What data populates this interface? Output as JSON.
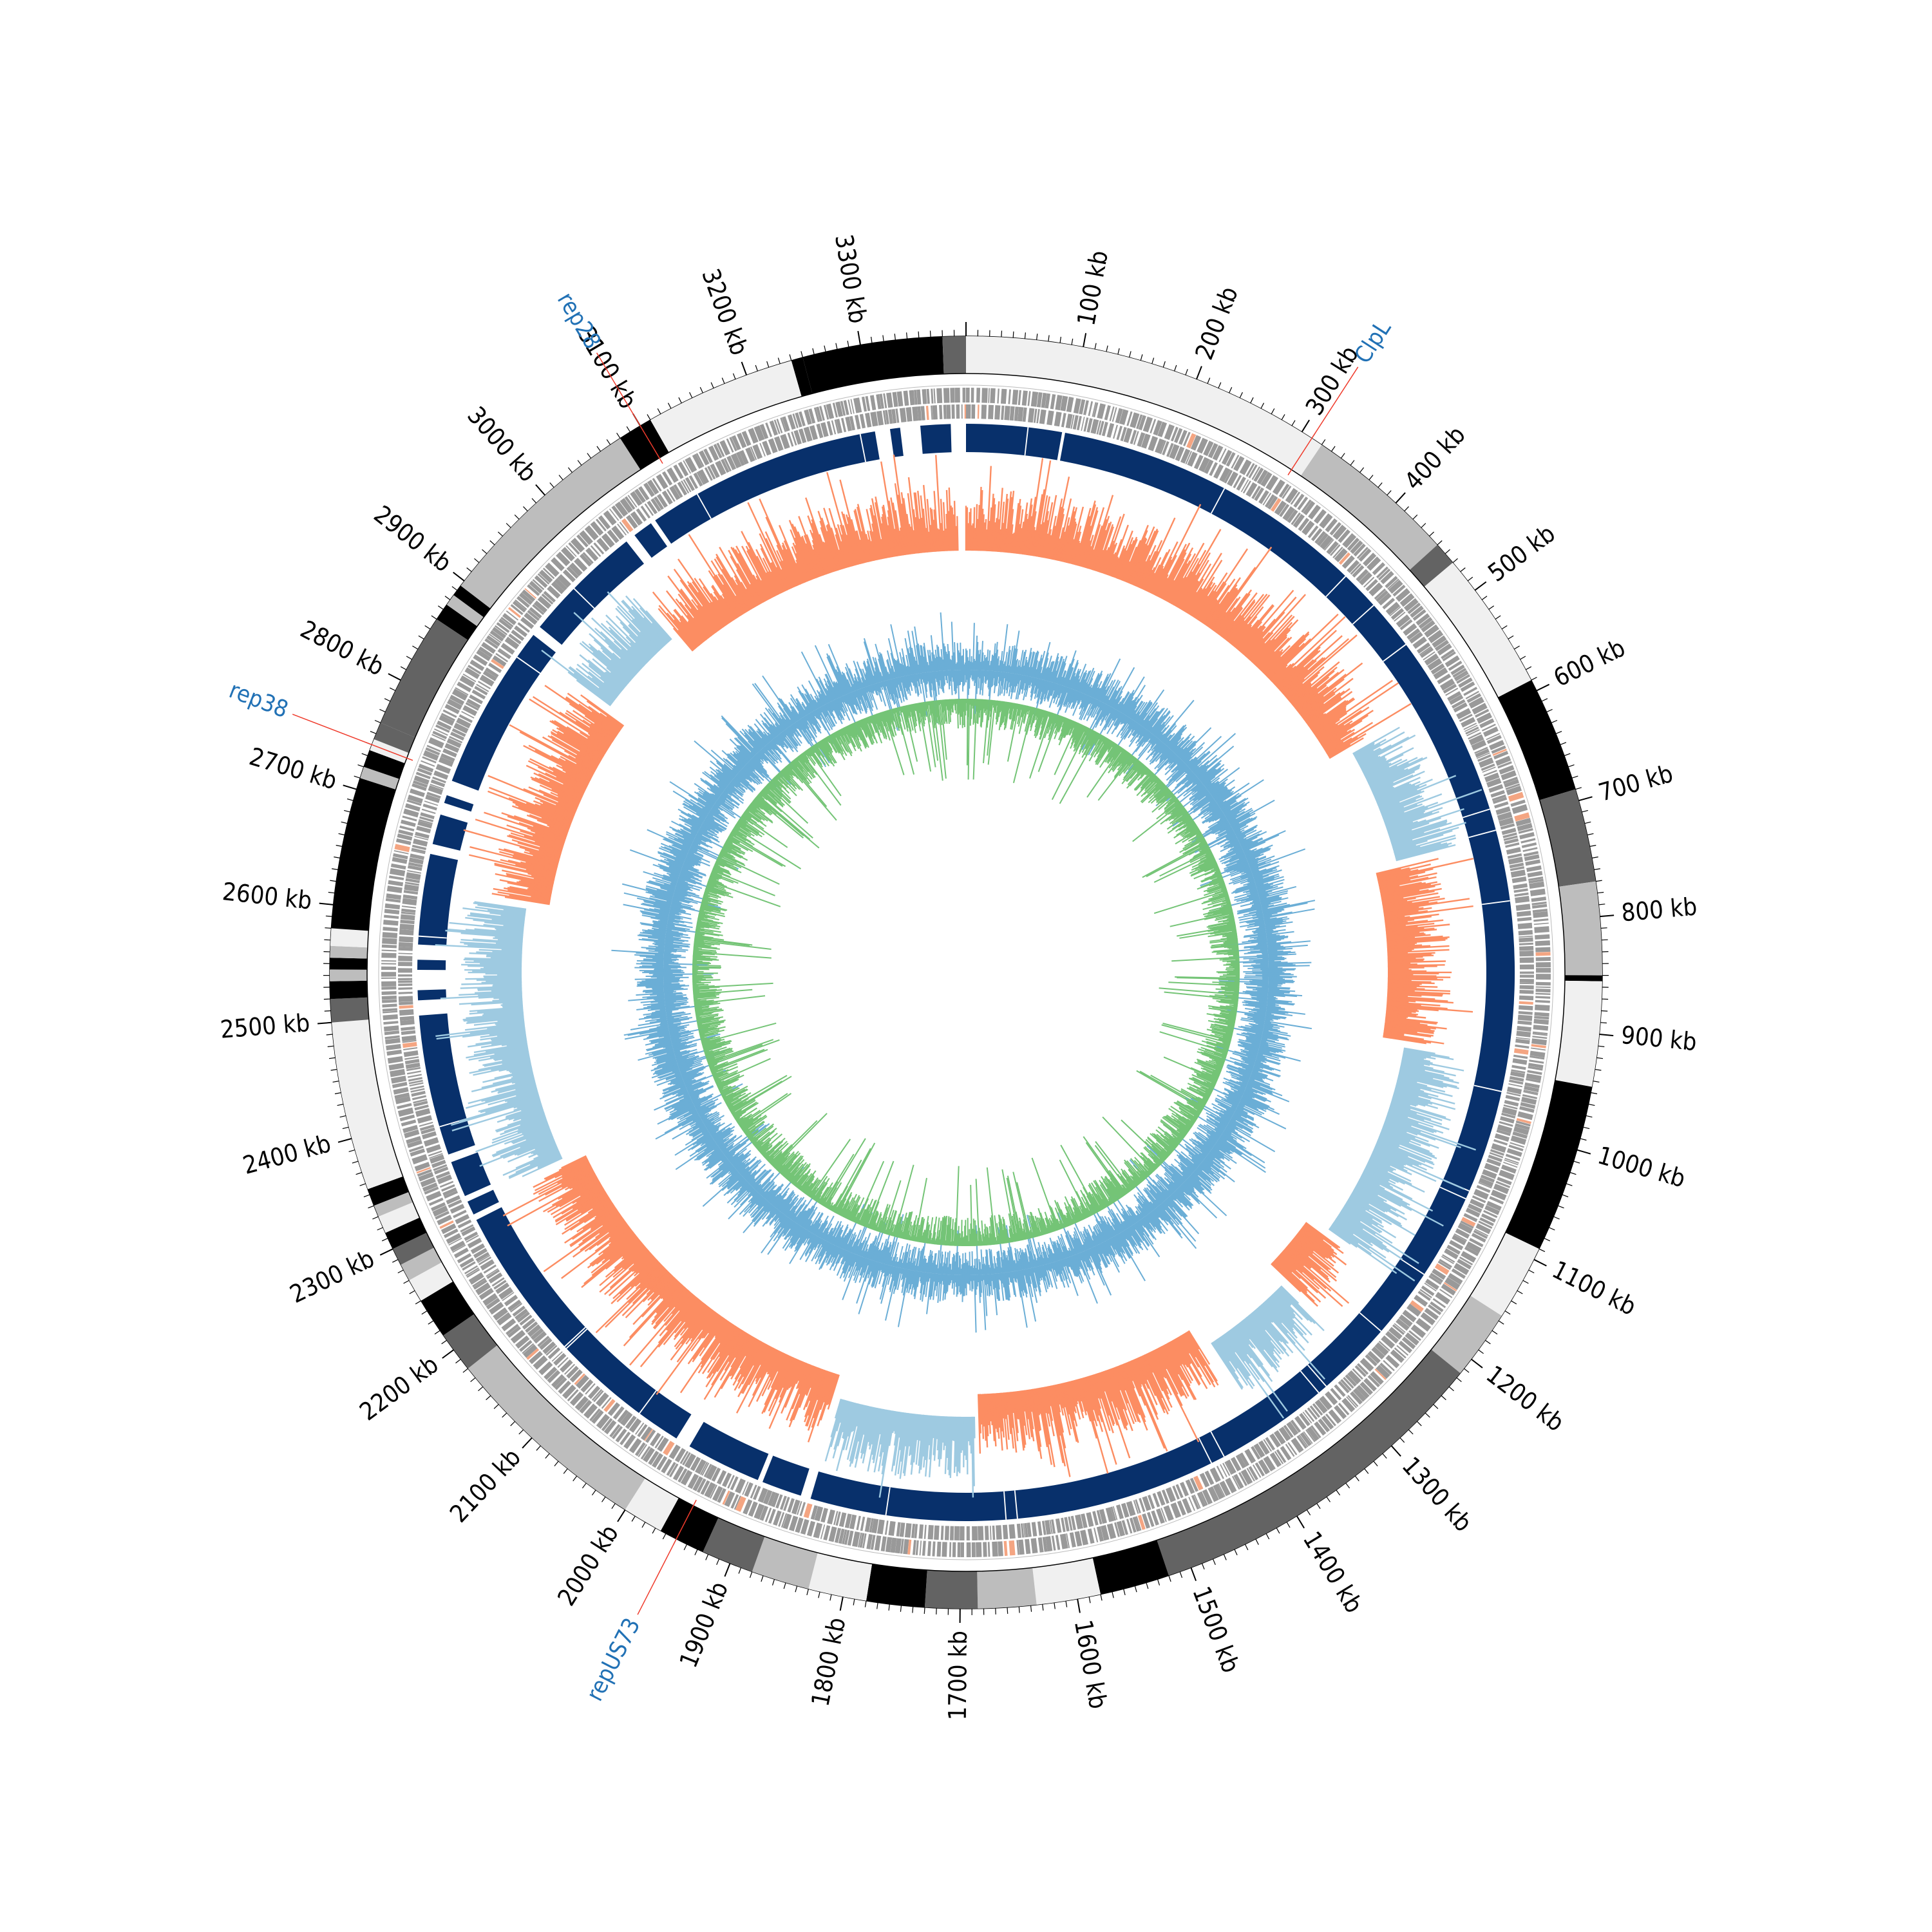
{
  "chart_data": {
    "type": "circular-genome",
    "genome_length_kb": 3390,
    "position_labels": [
      "100 kb",
      "200 kb",
      "300 kb",
      "400 kb",
      "500 kb",
      "600 kb",
      "700 kb",
      "800 kb",
      "900 kb",
      "1000 kb",
      "1100 kb",
      "1200 kb",
      "1300 kb",
      "1400 kb",
      "1500 kb",
      "1600 kb",
      "1700 kb",
      "1800 kb",
      "1900 kb",
      "2000 kb",
      "2100 kb",
      "2200 kb",
      "2300 kb",
      "2400 kb",
      "2500 kb",
      "2600 kb",
      "2700 kb",
      "2800 kb",
      "2900 kb",
      "3000 kb",
      "3100 kb",
      "3200 kb",
      "3300 kb"
    ],
    "major_tick_step_kb": 100,
    "minor_tick_step_kb": 10,
    "annotations": [
      {
        "label": "ClpL",
        "position_kb": 310
      },
      {
        "label": "rep38",
        "position_kb": 2740
      },
      {
        "label": "repUS73",
        "position_kb": 1950
      },
      {
        "label": "rep28",
        "position_kb": 3100
      }
    ],
    "contig_blocks": [
      {
        "start": 0,
        "end": 320,
        "shade": "#f0f0f0"
      },
      {
        "start": 320,
        "end": 450,
        "shade": "#bdbdbd"
      },
      {
        "start": 450,
        "end": 470,
        "shade": "#636363"
      },
      {
        "start": 470,
        "end": 590,
        "shade": "#f0f0f0"
      },
      {
        "start": 590,
        "end": 690,
        "shade": "#000000"
      },
      {
        "start": 690,
        "end": 770,
        "shade": "#636363"
      },
      {
        "start": 770,
        "end": 850,
        "shade": "#bdbdbd"
      },
      {
        "start": 850,
        "end": 855,
        "shade": "#000000"
      },
      {
        "start": 855,
        "end": 945,
        "shade": "#f0f0f0"
      },
      {
        "start": 945,
        "end": 1090,
        "shade": "#000000"
      },
      {
        "start": 1090,
        "end": 1155,
        "shade": "#f0f0f0"
      },
      {
        "start": 1155,
        "end": 1215,
        "shade": "#bdbdbd"
      },
      {
        "start": 1215,
        "end": 1520,
        "shade": "#636363"
      },
      {
        "start": 1520,
        "end": 1580,
        "shade": "#000000"
      },
      {
        "start": 1580,
        "end": 1635,
        "shade": "#f0f0f0"
      },
      {
        "start": 1635,
        "end": 1685,
        "shade": "#bdbdbd"
      },
      {
        "start": 1685,
        "end": 1730,
        "shade": "#636363"
      },
      {
        "start": 1730,
        "end": 1780,
        "shade": "#000000"
      },
      {
        "start": 1780,
        "end": 1830,
        "shade": "#f0f0f0"
      },
      {
        "start": 1830,
        "end": 1880,
        "shade": "#bdbdbd"
      },
      {
        "start": 1880,
        "end": 1925,
        "shade": "#636363"
      },
      {
        "start": 1925,
        "end": 1965,
        "shade": "#000000"
      },
      {
        "start": 1965,
        "end": 2000,
        "shade": "#f0f0f0"
      },
      {
        "start": 2000,
        "end": 2180,
        "shade": "#bdbdbd"
      },
      {
        "start": 2180,
        "end": 2215,
        "shade": "#636363"
      },
      {
        "start": 2215,
        "end": 2250,
        "shade": "#000000"
      },
      {
        "start": 2250,
        "end": 2270,
        "shade": "#f0f0f0"
      },
      {
        "start": 2270,
        "end": 2285,
        "shade": "#bdbdbd"
      },
      {
        "start": 2285,
        "end": 2300,
        "shade": "#636363"
      },
      {
        "start": 2300,
        "end": 2315,
        "shade": "#000000"
      },
      {
        "start": 2315,
        "end": 2330,
        "shade": "#f0f0f0"
      },
      {
        "start": 2330,
        "end": 2340,
        "shade": "#bdbdbd"
      },
      {
        "start": 2340,
        "end": 2355,
        "shade": "#000000"
      },
      {
        "start": 2355,
        "end": 2500,
        "shade": "#f0f0f0"
      },
      {
        "start": 2500,
        "end": 2520,
        "shade": "#636363"
      },
      {
        "start": 2520,
        "end": 2535,
        "shade": "#000000"
      },
      {
        "start": 2535,
        "end": 2545,
        "shade": "#bdbdbd"
      },
      {
        "start": 2545,
        "end": 2555,
        "shade": "#000000"
      },
      {
        "start": 2555,
        "end": 2565,
        "shade": "#bdbdbd"
      },
      {
        "start": 2565,
        "end": 2580,
        "shade": "#f0f0f0"
      },
      {
        "start": 2580,
        "end": 2710,
        "shade": "#000000"
      },
      {
        "start": 2710,
        "end": 2720,
        "shade": "#bdbdbd"
      },
      {
        "start": 2720,
        "end": 2735,
        "shade": "#000000"
      },
      {
        "start": 2735,
        "end": 2745,
        "shade": "#f0f0f0"
      },
      {
        "start": 2745,
        "end": 2760,
        "shade": "#636363"
      },
      {
        "start": 2760,
        "end": 2860,
        "shade": "#636363"
      },
      {
        "start": 2860,
        "end": 2875,
        "shade": "#000000"
      },
      {
        "start": 2875,
        "end": 2885,
        "shade": "#bdbdbd"
      },
      {
        "start": 2885,
        "end": 2895,
        "shade": "#000000"
      },
      {
        "start": 2895,
        "end": 3080,
        "shade": "#bdbdbd"
      },
      {
        "start": 3080,
        "end": 3110,
        "shade": "#000000"
      },
      {
        "start": 3110,
        "end": 3240,
        "shade": "#f0f0f0"
      },
      {
        "start": 3240,
        "end": 3250,
        "shade": "#000000"
      },
      {
        "start": 3250,
        "end": 3370,
        "shade": "#000000"
      },
      {
        "start": 3370,
        "end": 3390,
        "shade": "#636363"
      }
    ],
    "alignment_blocks": [
      {
        "start": 0,
        "end": 95
      },
      {
        "start": 98,
        "end": 1850
      },
      {
        "start": 1860,
        "end": 1900
      },
      {
        "start": 1905,
        "end": 1980
      },
      {
        "start": 1995,
        "end": 2290
      },
      {
        "start": 2296,
        "end": 2310
      },
      {
        "start": 2316,
        "end": 2352
      },
      {
        "start": 2360,
        "end": 2500
      },
      {
        "start": 2515,
        "end": 2525
      },
      {
        "start": 2545,
        "end": 2555
      },
      {
        "start": 2570,
        "end": 2660
      },
      {
        "start": 2670,
        "end": 2700
      },
      {
        "start": 2712,
        "end": 2720
      },
      {
        "start": 2735,
        "end": 2900
      },
      {
        "start": 2910,
        "end": 3030
      },
      {
        "start": 3040,
        "end": 3060
      },
      {
        "start": 3065,
        "end": 3300
      },
      {
        "start": 3315,
        "end": 3325
      },
      {
        "start": 3345,
        "end": 3375
      }
    ],
    "skew_segments": [
      {
        "start": 0,
        "end": 560,
        "strand": "positive"
      },
      {
        "start": 570,
        "end": 710,
        "strand": "negative"
      },
      {
        "start": 720,
        "end": 930,
        "strand": "positive"
      },
      {
        "start": 940,
        "end": 1180,
        "strand": "negative"
      },
      {
        "start": 1190,
        "end": 1260,
        "strand": "positive"
      },
      {
        "start": 1270,
        "end": 1380,
        "strand": "negative"
      },
      {
        "start": 1395,
        "end": 1680,
        "strand": "positive"
      },
      {
        "start": 1685,
        "end": 1850,
        "strand": "negative"
      },
      {
        "start": 1860,
        "end": 2300,
        "strand": "positive"
      },
      {
        "start": 2310,
        "end": 2620,
        "strand": "negative"
      },
      {
        "start": 2630,
        "end": 2880,
        "strand": "positive"
      },
      {
        "start": 2890,
        "end": 3000,
        "strand": "negative"
      },
      {
        "start": 3010,
        "end": 3380,
        "strand": "positive"
      }
    ],
    "colors": {
      "contig_light": "#f0f0f0",
      "contig_mid": "#bdbdbd",
      "contig_dark": "#636363",
      "contig_black": "#000000",
      "cds": "#999999",
      "cds_highlight": "#f4a582",
      "alignment": "#08306b",
      "skew_positive": "#fc8d62",
      "skew_negative": "#9ecae1",
      "gc_content": "#6baed6",
      "coverage": "#74c476",
      "annotation_line": "#ef3b2c",
      "annotation_text": "#2171b5"
    }
  }
}
